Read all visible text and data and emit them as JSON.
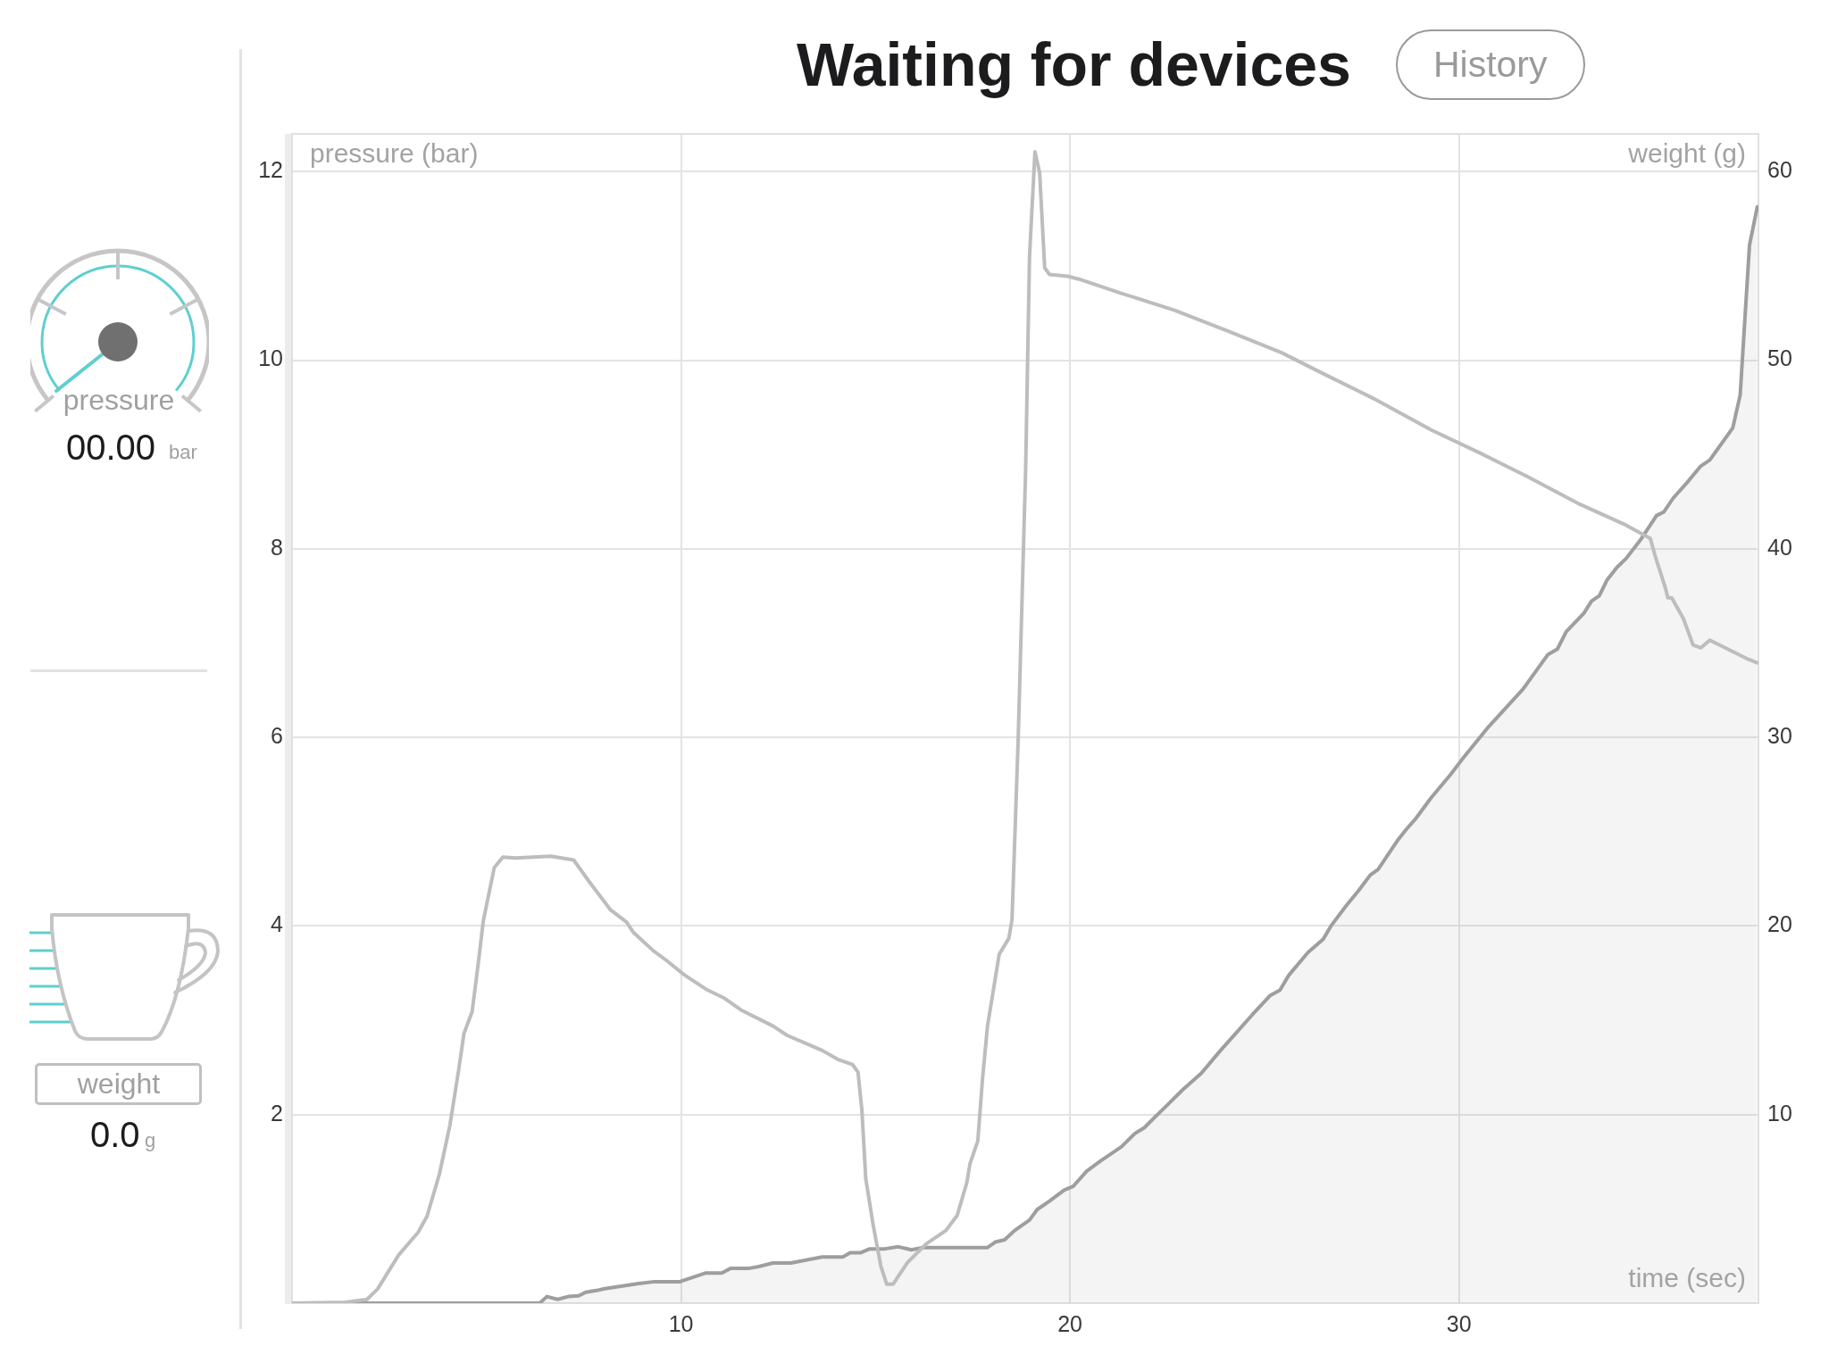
{
  "chart_data": [
    {
      "type": "line",
      "title": "Waiting for devices",
      "annotations": [
        "History"
      ],
      "xlabel": "time (sec)",
      "ylabel": "pressure (bar)",
      "y2label": "weight (g)",
      "xlim": [
        0,
        37.7
      ],
      "xticks": [
        10,
        20,
        30
      ],
      "ylim": [
        0,
        12.4
      ],
      "yticks": [
        2,
        4,
        6,
        8,
        10,
        12
      ],
      "y2lim": [
        0,
        62
      ],
      "y2ticks": [
        10,
        20,
        30,
        40,
        50,
        60
      ],
      "grid": true,
      "series": [
        {
          "type": "line",
          "color": "#bdbdbd",
          "x": [
            0,
            1.38,
            1.93,
            2.2,
            2.74,
            3.24,
            3.47,
            3.79,
            4.06,
            4.29,
            4.42,
            4.63,
            4.79,
            4.92,
            5.2,
            5.42,
            5.74,
            6.65,
            7.24,
            7.64,
            8.19,
            8.6,
            8.78,
            9.28,
            9.64,
            10.09,
            10.64,
            11.09,
            11.54,
            12.36,
            12.73,
            13.63,
            14.06,
            14.41,
            14.55,
            14.65,
            14.75,
            14.94,
            15.14,
            15.29,
            15.45,
            15.82,
            16.31,
            16.81,
            17.1,
            17.35,
            17.43,
            17.63,
            17.75,
            17.88,
            17.98,
            18.18,
            18.43,
            18.51,
            18.67,
            18.86,
            18.96,
            19.1,
            19.22,
            19.35,
            19.47,
            19.94,
            20.23,
            21.32,
            22.69,
            24.06,
            25.44,
            26.5,
            27.82,
            29.29,
            30.57,
            31.74,
            33.12,
            34.3,
            34.92,
            35.04,
            35.31,
            35.37,
            35.47,
            35.77,
            36.02,
            36.22,
            36.45,
            37.04,
            37.43,
            37.67
          ],
          "values": [
            0,
            0.01,
            0.04,
            0.15,
            0.51,
            0.75,
            0.92,
            1.37,
            1.89,
            2.49,
            2.86,
            3.09,
            3.61,
            4.06,
            4.62,
            4.73,
            4.72,
            4.74,
            4.7,
            4.47,
            4.17,
            4.04,
            3.93,
            3.74,
            3.63,
            3.48,
            3.33,
            3.24,
            3.11,
            2.94,
            2.84,
            2.68,
            2.58,
            2.53,
            2.45,
            2.05,
            1.32,
            0.83,
            0.39,
            0.2,
            0.2,
            0.43,
            0.63,
            0.77,
            0.93,
            1.28,
            1.48,
            1.72,
            2.37,
            2.94,
            3.19,
            3.7,
            3.87,
            4.07,
            6.0,
            8.84,
            11.1,
            12.21,
            11.99,
            10.98,
            10.91,
            10.89,
            10.86,
            10.71,
            10.53,
            10.31,
            10.08,
            9.86,
            9.59,
            9.26,
            9.01,
            8.77,
            8.47,
            8.25,
            8.11,
            7.93,
            7.58,
            7.48,
            7.48,
            7.26,
            6.98,
            6.95,
            7.03,
            6.91,
            6.83,
            6.79
          ]
        },
        {
          "type": "area",
          "color": "#9e9e9e",
          "axis": "y2",
          "x": [
            0,
            6.37,
            6.55,
            6.83,
            7.1,
            7.37,
            7.55,
            7.83,
            8.01,
            8.91,
            9.28,
            9.96,
            10.23,
            10.64,
            11.05,
            11.27,
            11.73,
            12.0,
            12.36,
            12.82,
            13.63,
            14.16,
            14.35,
            14.61,
            14.84,
            15.2,
            15.59,
            15.92,
            16.22,
            17.88,
            18.08,
            18.32,
            18.57,
            18.96,
            19.16,
            19.45,
            19.85,
            20.08,
            20.43,
            20.77,
            21.32,
            21.67,
            21.91,
            22.2,
            22.5,
            22.89,
            23.38,
            23.87,
            24.26,
            24.69,
            25.14,
            25.4,
            25.63,
            26.12,
            26.51,
            26.71,
            27.11,
            27.43,
            27.72,
            27.92,
            28.41,
            28.64,
            28.9,
            29.29,
            29.78,
            30.08,
            30.76,
            31.64,
            32.29,
            32.53,
            32.76,
            33.21,
            33.41,
            33.61,
            33.8,
            34.06,
            34.3,
            34.69,
            35.08,
            35.27,
            35.51,
            35.86,
            36.22,
            36.45,
            36.69,
            37.04,
            37.23,
            37.47,
            37.67
          ],
          "values": [
            0,
            0,
            0.35,
            0.2,
            0.35,
            0.39,
            0.58,
            0.67,
            0.76,
            1.04,
            1.13,
            1.13,
            1.32,
            1.6,
            1.6,
            1.84,
            1.84,
            1.94,
            2.13,
            2.13,
            2.45,
            2.45,
            2.67,
            2.67,
            2.87,
            2.87,
            2.99,
            2.83,
            2.95,
            2.95,
            3.24,
            3.36,
            3.84,
            4.41,
            4.97,
            5.38,
            5.99,
            6.19,
            7.0,
            7.52,
            8.29,
            9.0,
            9.3,
            9.9,
            10.5,
            11.3,
            12.2,
            13.4,
            14.3,
            15.3,
            16.3,
            16.6,
            17.4,
            18.6,
            19.3,
            20.0,
            21.1,
            21.9,
            22.7,
            23.0,
            24.5,
            25.11,
            25.72,
            26.81,
            28.02,
            28.83,
            30.56,
            32.54,
            34.4,
            34.68,
            35.61,
            36.58,
            37.23,
            37.51,
            38.32,
            39.01,
            39.49,
            40.54,
            41.76,
            41.96,
            42.69,
            43.5,
            44.39,
            44.71,
            45.4,
            46.41,
            48.15,
            56.1,
            58.13
          ]
        }
      ]
    },
    {
      "type": "other",
      "annotations": [
        "pressure",
        "00.00",
        "bar",
        "weight",
        "0.0",
        "g"
      ]
    }
  ]
}
